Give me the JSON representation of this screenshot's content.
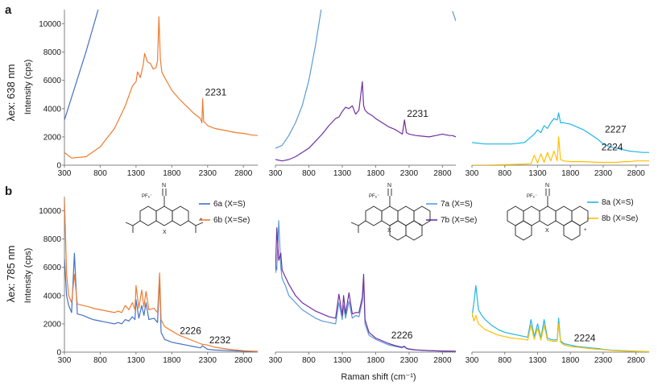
{
  "rows": [
    {
      "letter": "a",
      "row_label_main": "λex: 638 nm",
      "ylabel": "Intensity (cps)"
    },
    {
      "letter": "b",
      "row_label_main": "λex: 785 nm",
      "ylabel": "Intensity (cps)"
    }
  ],
  "xlabel": "Raman shift (cm⁻¹)",
  "chart_data": [
    {
      "type": "line",
      "row": "a",
      "col": 0,
      "x": [
        300,
        400,
        600,
        800,
        1000,
        1150,
        1250,
        1300,
        1320,
        1360,
        1400,
        1420,
        1460,
        1500,
        1540,
        1580,
        1600,
        1620,
        1640,
        1660,
        1700,
        1800,
        1900,
        2000,
        2100,
        2200,
        2220,
        2231,
        2245,
        2300,
        2400,
        2500,
        2600,
        2700,
        2800,
        2900,
        3000
      ],
      "series": [
        {
          "color": "#4472c4",
          "values": [
            3200,
            4800,
            8000,
            11500,
            null,
            null,
            null,
            null,
            null,
            null,
            null,
            null,
            null,
            null,
            null,
            null,
            null,
            null,
            null,
            null,
            null,
            null,
            null,
            null,
            null,
            null,
            null,
            null,
            null,
            null,
            null,
            null,
            null,
            null,
            null,
            null,
            null
          ]
        },
        {
          "color": "#ed7d31",
          "values": [
            900,
            500,
            600,
            1300,
            2600,
            4200,
            5600,
            5900,
            6600,
            6200,
            7100,
            7900,
            7300,
            7200,
            6800,
            6900,
            7400,
            10500,
            7500,
            6600,
            6200,
            5300,
            4700,
            4200,
            3700,
            3300,
            3000,
            4700,
            3100,
            2800,
            2600,
            2500,
            2400,
            2300,
            2250,
            2150,
            2100
          ]
        }
      ],
      "xlim": [
        300,
        3000
      ],
      "ylim": [
        0,
        11000
      ],
      "x_ticks": [
        300,
        800,
        1300,
        1800,
        2300,
        2800
      ],
      "y_ticks": [
        0,
        2000,
        4000,
        6000,
        8000,
        10000
      ],
      "annotations": [
        {
          "text": "2231",
          "x": 2231,
          "y": 4700
        }
      ]
    },
    {
      "type": "line",
      "row": "a",
      "col": 1,
      "x": [
        300,
        400,
        500,
        600,
        700,
        800,
        900,
        1000,
        1100,
        1200,
        1250,
        1300,
        1350,
        1400,
        1450,
        1500,
        1550,
        1600,
        1620,
        1640,
        1680,
        1750,
        1800,
        1900,
        2000,
        2100,
        2200,
        2231,
        2260,
        2300,
        2400,
        2500,
        2600,
        2700,
        2800,
        2900,
        2950,
        3000
      ],
      "series": [
        {
          "color": "#5b9bd5",
          "values": [
            1200,
            1400,
            2100,
            3000,
            4200,
            6000,
            8500,
            11500,
            null,
            null,
            null,
            null,
            null,
            null,
            null,
            null,
            null,
            null,
            null,
            null,
            null,
            null,
            null,
            null,
            null,
            null,
            null,
            null,
            null,
            null,
            null,
            null,
            null,
            null,
            null,
            null,
            10900,
            10200
          ]
        },
        {
          "color": "#7030a0",
          "values": [
            400,
            300,
            400,
            600,
            900,
            1200,
            1700,
            2200,
            2800,
            3300,
            3400,
            3800,
            4100,
            4000,
            4200,
            3600,
            3900,
            5900,
            4200,
            3900,
            3700,
            3500,
            3300,
            3000,
            2700,
            2500,
            2200,
            3200,
            2300,
            2200,
            2100,
            2050,
            2000,
            2100,
            2200,
            2100,
            2100,
            2000
          ]
        }
      ],
      "xlim": [
        300,
        3000
      ],
      "ylim": [
        0,
        11000
      ],
      "x_ticks": [
        300,
        800,
        1300,
        1800,
        2300,
        2800
      ],
      "annotations": [
        {
          "text": "2231",
          "x": 2231,
          "y": 3200
        }
      ]
    },
    {
      "type": "line",
      "row": "a",
      "col": 2,
      "x": [
        300,
        500,
        700,
        900,
        1100,
        1200,
        1250,
        1300,
        1350,
        1400,
        1450,
        1500,
        1550,
        1600,
        1620,
        1650,
        1700,
        1800,
        1900,
        2000,
        2100,
        2227,
        2300,
        2400,
        2500,
        2600,
        2700,
        2800,
        2900,
        3000
      ],
      "series": [
        {
          "color": "#1fb6e6",
          "values": [
            1600,
            1500,
            1500,
            1500,
            1600,
            2000,
            2200,
            2500,
            2300,
            2800,
            2600,
            3000,
            3300,
            3200,
            3700,
            3000,
            3000,
            2900,
            2700,
            2500,
            2200,
            1800,
            1500,
            1300,
            1200,
            1100,
            1000,
            950,
            900,
            900
          ]
        },
        {
          "color": "#ffc000",
          "values": [
            0,
            0,
            30,
            50,
            80,
            100,
            700,
            150,
            800,
            200,
            900,
            300,
            1000,
            300,
            2000,
            400,
            300,
            250,
            250,
            250,
            230,
            200,
            200,
            200,
            200,
            250,
            250,
            300,
            300,
            300
          ]
        }
      ],
      "xlim": [
        300,
        3000
      ],
      "ylim": [
        0,
        11000
      ],
      "x_ticks": [
        300,
        800,
        1300,
        1800,
        2300,
        2800
      ],
      "annotations": [
        {
          "text": "2227",
          "x": 2227,
          "y": 2200
        },
        {
          "text": "2224",
          "x": 2224,
          "y": 700
        }
      ]
    },
    {
      "type": "line",
      "row": "b",
      "col": 0,
      "x": [
        300,
        330,
        360,
        400,
        440,
        480,
        560,
        650,
        700,
        800,
        900,
        1000,
        1050,
        1100,
        1150,
        1200,
        1250,
        1285,
        1300,
        1340,
        1380,
        1410,
        1440,
        1480,
        1550,
        1600,
        1630,
        1650,
        1700,
        1800,
        1900,
        2000,
        2100,
        2200,
        2226,
        2300,
        2400,
        2600,
        2800,
        3000
      ],
      "series": [
        {
          "color": "#4472c4",
          "values": [
            6600,
            4000,
            3300,
            2800,
            7000,
            2700,
            2600,
            2400,
            2300,
            2200,
            2100,
            2000,
            2100,
            2000,
            2300,
            2200,
            2500,
            2300,
            3700,
            2400,
            3300,
            2600,
            3500,
            2300,
            2400,
            2100,
            5300,
            1400,
            900,
            700,
            600,
            500,
            400,
            300,
            450,
            200,
            150,
            100,
            60,
            30
          ]
        },
        {
          "color": "#ed7d31",
          "values": [
            10900,
            5500,
            4000,
            3500,
            5500,
            3400,
            3300,
            3200,
            3100,
            3000,
            2900,
            2800,
            2900,
            2800,
            3300,
            3000,
            3500,
            3000,
            4700,
            3100,
            4400,
            3200,
            4300,
            3000,
            3100,
            2800,
            5600,
            2300,
            1800,
            1500,
            1200,
            1000,
            800,
            600,
            550,
            500,
            350,
            200,
            100,
            50
          ]
        }
      ],
      "xlim": [
        300,
        3000
      ],
      "ylim": [
        0,
        11000
      ],
      "x_ticks": [
        300,
        800,
        1300,
        1800,
        2300,
        2800
      ],
      "y_ticks": [
        0,
        2000,
        4000,
        6000,
        8000,
        10000
      ],
      "legend": [
        "6a (X=S)",
        "6b (X=Se)"
      ],
      "annotations": [
        {
          "text": "2226",
          "x": 2226,
          "y": 600
        },
        {
          "text": "2232",
          "x": 2232,
          "y": 400
        }
      ]
    },
    {
      "type": "line",
      "row": "b",
      "col": 1,
      "x": [
        300,
        320,
        350,
        380,
        400,
        450,
        500,
        600,
        700,
        800,
        900,
        1000,
        1100,
        1200,
        1250,
        1300,
        1320,
        1350,
        1400,
        1450,
        1500,
        1550,
        1600,
        1620,
        1640,
        1700,
        1800,
        1900,
        2000,
        2100,
        2200,
        2226,
        2260,
        2300,
        2400,
        2600,
        2800,
        3000
      ],
      "series": [
        {
          "color": "#5b9bd5",
          "values": [
            6200,
            5800,
            9300,
            6000,
            5200,
            4700,
            4000,
            3500,
            3000,
            2700,
            2400,
            2200,
            2100,
            2000,
            3500,
            2300,
            3300,
            2400,
            3600,
            2400,
            2600,
            2500,
            3600,
            5000,
            2000,
            1200,
            900,
            700,
            500,
            400,
            300,
            400,
            250,
            200,
            150,
            100,
            70,
            50
          ]
        },
        {
          "color": "#7030a0",
          "values": [
            5600,
            8800,
            6500,
            7000,
            5800,
            5300,
            4800,
            4000,
            3500,
            3200,
            2900,
            2700,
            2500,
            2400,
            4100,
            2600,
            4000,
            2700,
            4200,
            2700,
            2800,
            2800,
            3900,
            5500,
            2300,
            1400,
            1000,
            800,
            600,
            450,
            350,
            420,
            280,
            220,
            160,
            110,
            80,
            60
          ]
        }
      ],
      "xlim": [
        300,
        3000
      ],
      "ylim": [
        0,
        11000
      ],
      "x_ticks": [
        300,
        800,
        1300,
        1800,
        2300,
        2800
      ],
      "legend": [
        "7a (X=S)",
        "7b (X=Se)"
      ],
      "annotations": [
        {
          "text": "2226",
          "x": 2226,
          "y": 500
        }
      ]
    },
    {
      "type": "line",
      "row": "b",
      "col": 2,
      "x": [
        300,
        330,
        360,
        400,
        450,
        500,
        600,
        700,
        800,
        900,
        1000,
        1100,
        1150,
        1200,
        1250,
        1300,
        1350,
        1400,
        1450,
        1500,
        1550,
        1600,
        1620,
        1650,
        1700,
        1800,
        1900,
        2000,
        2100,
        2224,
        2300,
        2400,
        2600,
        2800,
        3000
      ],
      "series": [
        {
          "color": "#1fb6e6",
          "values": [
            2500,
            3500,
            4700,
            3000,
            2600,
            2300,
            1900,
            1600,
            1400,
            1300,
            1200,
            1100,
            1050,
            2300,
            1100,
            2000,
            1000,
            2300,
            1000,
            900,
            850,
            900,
            2400,
            800,
            600,
            500,
            400,
            350,
            300,
            250,
            200,
            150,
            100,
            60,
            40
          ]
        },
        {
          "color": "#ffc000",
          "values": [
            2800,
            2200,
            2600,
            2000,
            1800,
            1600,
            1400,
            1200,
            1100,
            1000,
            950,
            900,
            850,
            1900,
            900,
            1700,
            850,
            1900,
            850,
            800,
            750,
            800,
            2000,
            700,
            500,
            400,
            350,
            300,
            250,
            200,
            180,
            130,
            80,
            50,
            30
          ]
        }
      ],
      "xlim": [
        300,
        3000
      ],
      "ylim": [
        0,
        11000
      ],
      "x_ticks": [
        300,
        800,
        1300,
        1800,
        2300,
        2800
      ],
      "legend": [
        "8a (X=S)",
        "8b (X=Se)"
      ],
      "annotations": [
        {
          "text": "2224",
          "x": 2224,
          "y": 300
        }
      ]
    }
  ],
  "structures": [
    {
      "counterion": "PF₆⁻",
      "nitrile": "N",
      "x_atom": "X",
      "plus": "+"
    },
    {
      "counterion": "PF₆⁻",
      "nitrile": "N",
      "x_atom": "X",
      "plus": "+"
    },
    {
      "counterion": "PF₆⁻",
      "nitrile": "N",
      "x_atom": "X",
      "plus": "+"
    }
  ]
}
